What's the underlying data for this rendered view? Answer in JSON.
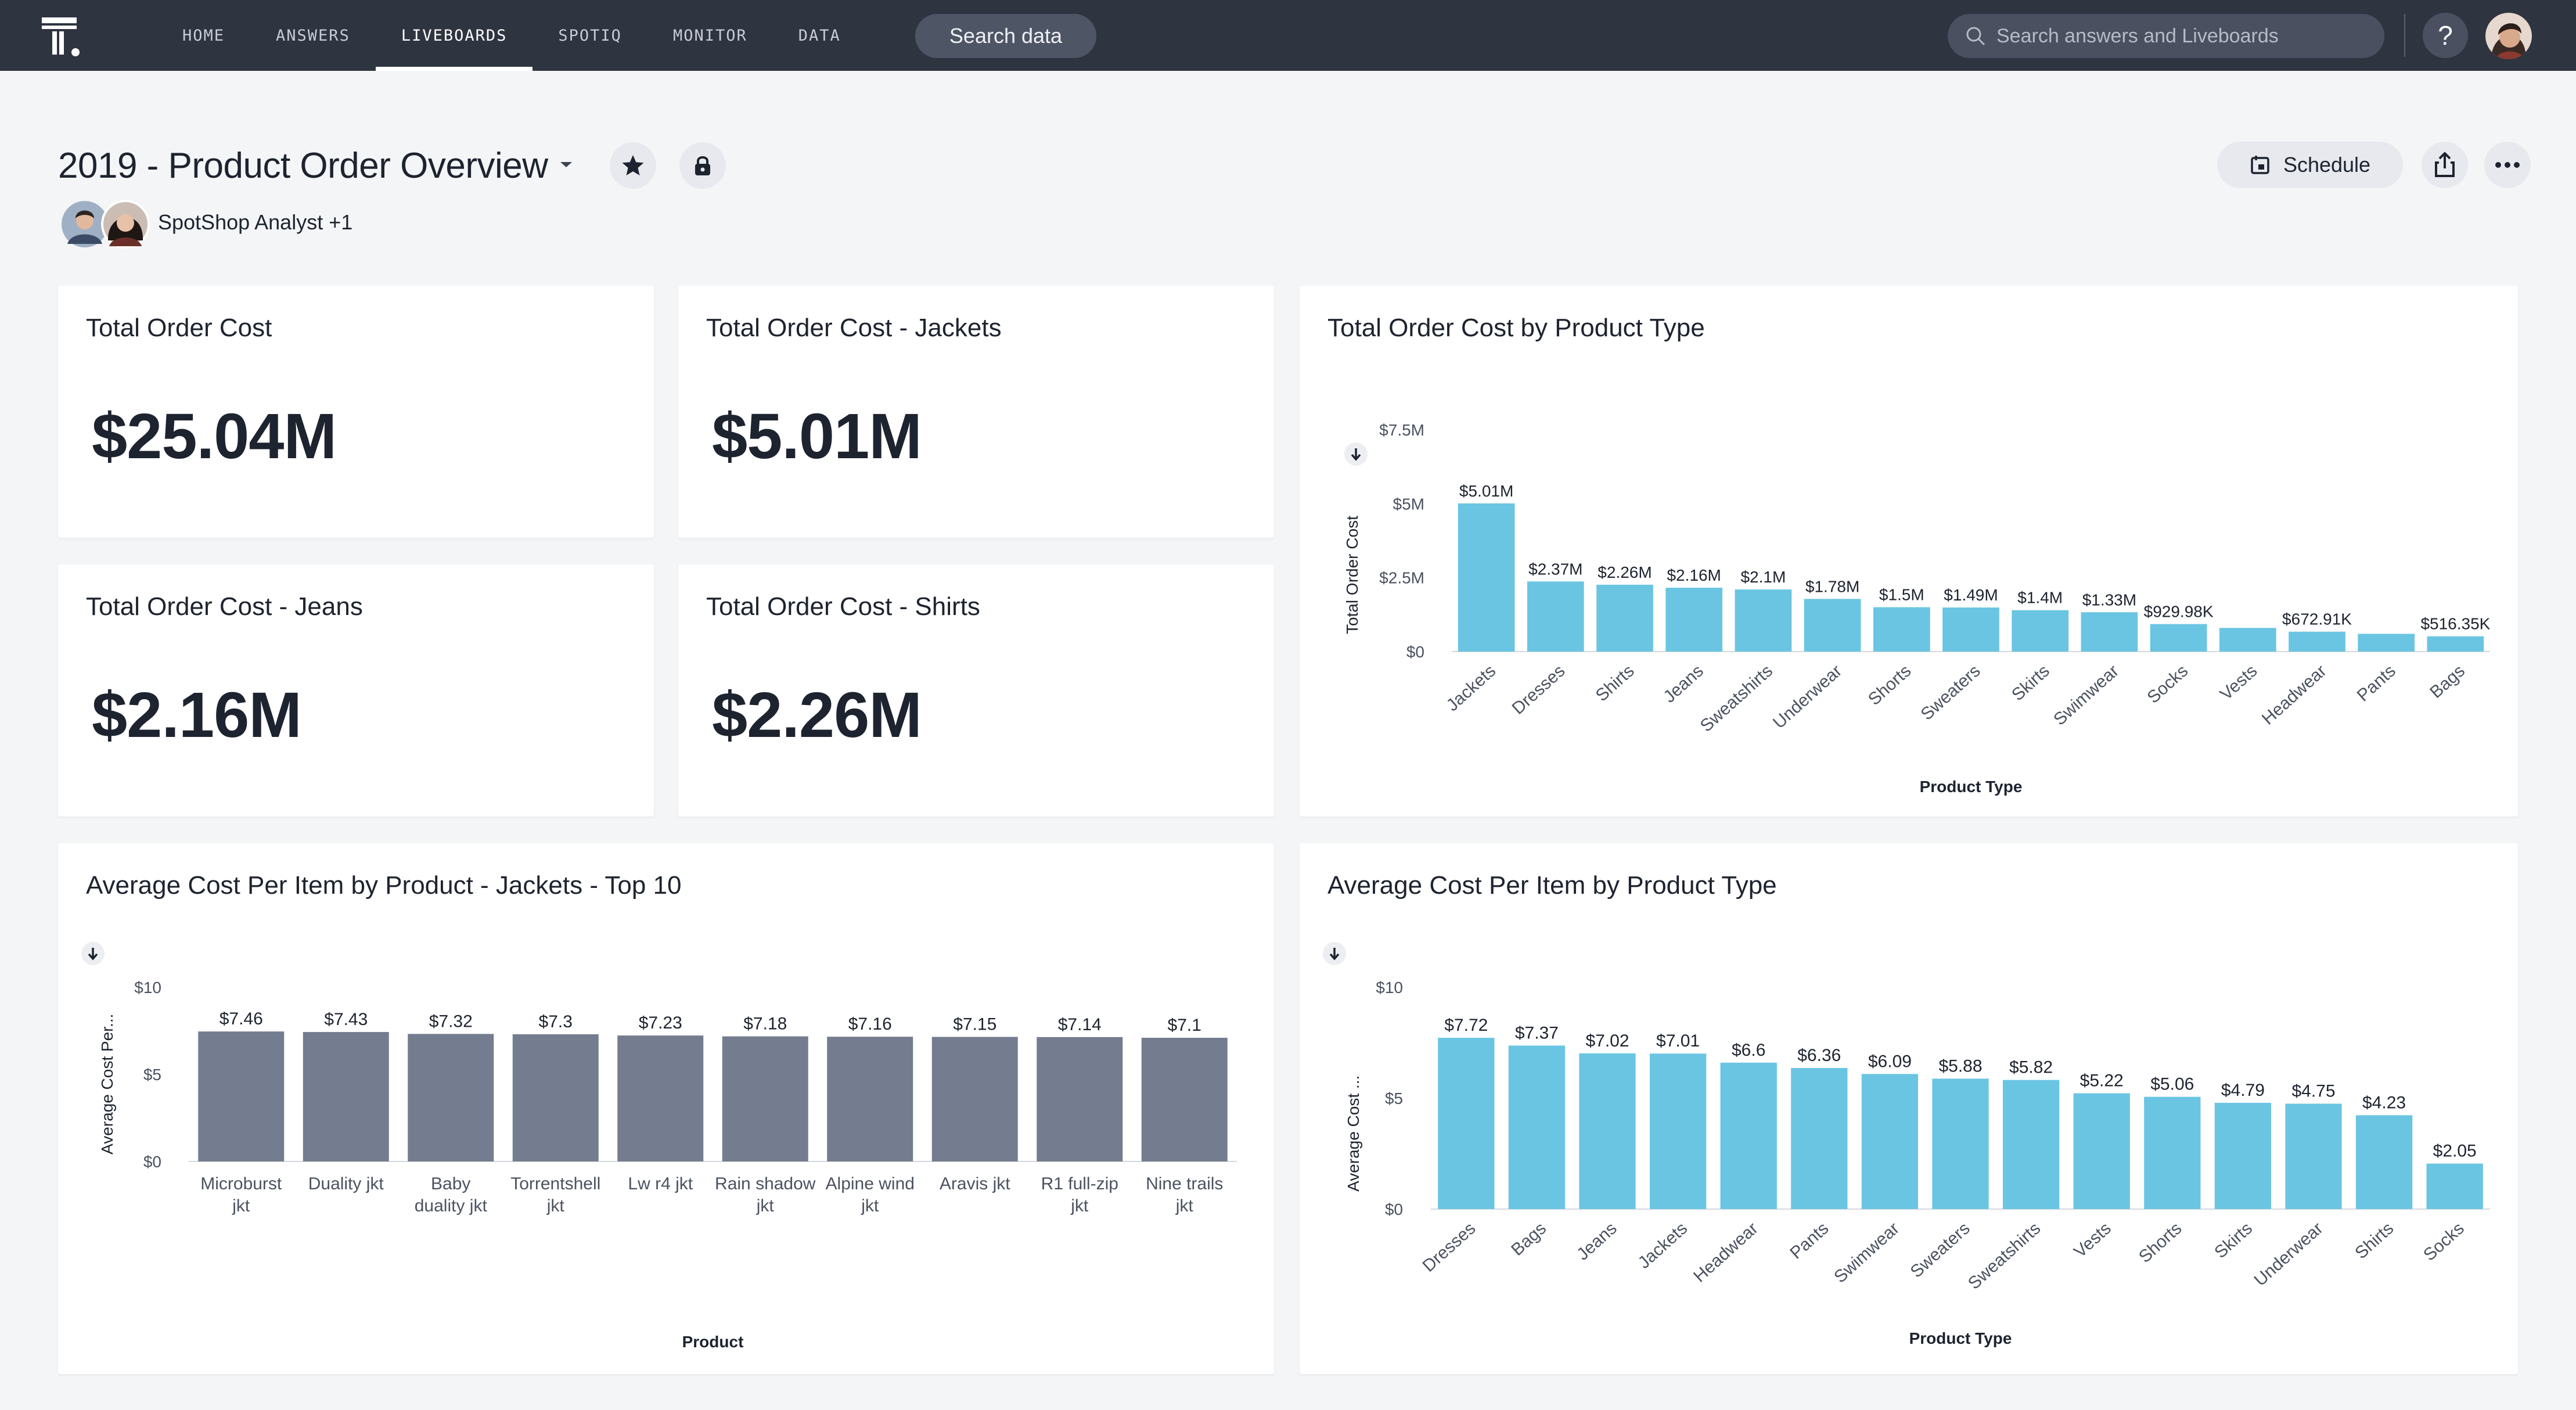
{
  "nav": {
    "items": [
      "HOME",
      "ANSWERS",
      "LIVEBOARDS",
      "SPOTIQ",
      "MONITOR",
      "DATA"
    ],
    "active": "LIVEBOARDS",
    "search_data_label": "Search data",
    "search_placeholder": "Search answers and Liveboards",
    "help_label": "?"
  },
  "liveboard": {
    "title": "2019 - Product Order Overview",
    "author": "SpotShop Analyst +1",
    "schedule_label": "Schedule"
  },
  "kpis": [
    {
      "title": "Total Order Cost",
      "value": "$25.04M"
    },
    {
      "title": "Total Order Cost - Jackets",
      "value": "$5.01M"
    },
    {
      "title": "Total Order Cost - Jeans",
      "value": "$2.16M"
    },
    {
      "title": "Total Order Cost - Shirts",
      "value": "$2.26M"
    }
  ],
  "chart_data": [
    {
      "type": "bar",
      "title": "Total Order Cost by Product Type",
      "xlabel": "Product Type",
      "ylabel": "Total Order Cost",
      "ylim": [
        0,
        7500000
      ],
      "yticks": [
        0,
        2500000,
        5000000,
        7500000
      ],
      "yticklabels": [
        "$0",
        "$2.5M",
        "$5M",
        "$7.5M"
      ],
      "categories": [
        "Jackets",
        "Dresses",
        "Shirts",
        "Jeans",
        "Sweatshirts",
        "Underwear",
        "Shorts",
        "Sweaters",
        "Skirts",
        "Swimwear",
        "Socks",
        "Vests",
        "Headwear",
        "Pants",
        "Bags"
      ],
      "values": [
        5010000,
        2370000,
        2260000,
        2160000,
        2100000,
        1780000,
        1500000,
        1490000,
        1400000,
        1330000,
        929980,
        800000,
        672910,
        600000,
        516350
      ],
      "value_labels": [
        "$5.01M",
        "$2.37M",
        "$2.26M",
        "$2.16M",
        "$2.1M",
        "$1.78M",
        "$1.5M",
        "$1.49M",
        "$1.4M",
        "$1.33M",
        "$929.98K",
        "",
        "$672.91K",
        "",
        "$516.35K"
      ],
      "color": "#6ac5e3",
      "grid": false
    },
    {
      "type": "bar",
      "title": "Average Cost Per Item by Product - Jackets - Top 10",
      "xlabel": "Product",
      "ylabel": "Average Cost Per...",
      "ylim": [
        0,
        10
      ],
      "yticks": [
        0,
        5,
        10
      ],
      "yticklabels": [
        "$0",
        "$5",
        "$10"
      ],
      "categories": [
        "Microburst jkt",
        "Duality jkt",
        "Baby duality jkt",
        "Torrentshell jkt",
        "Lw r4 jkt",
        "Rain shadow jkt",
        "Alpine wind jkt",
        "Aravis jkt",
        "R1 full-zip jkt",
        "Nine trails jkt"
      ],
      "values": [
        7.46,
        7.43,
        7.32,
        7.3,
        7.23,
        7.18,
        7.16,
        7.15,
        7.14,
        7.1
      ],
      "value_labels": [
        "$7.46",
        "$7.43",
        "$7.32",
        "$7.3",
        "$7.23",
        "$7.18",
        "$7.16",
        "$7.15",
        "$7.14",
        "$7.1"
      ],
      "color": "#747d8f",
      "grid": false
    },
    {
      "type": "bar",
      "title": "Average Cost Per Item by Product Type",
      "xlabel": "Product Type",
      "ylabel": "Average Cost ...",
      "ylim": [
        0,
        10
      ],
      "yticks": [
        0,
        5,
        10
      ],
      "yticklabels": [
        "$0",
        "$5",
        "$10"
      ],
      "categories": [
        "Dresses",
        "Bags",
        "Jeans",
        "Jackets",
        "Headwear",
        "Pants",
        "Swimwear",
        "Sweaters",
        "Sweatshirts",
        "Vests",
        "Shorts",
        "Skirts",
        "Underwear",
        "Shirts",
        "Socks"
      ],
      "values": [
        7.72,
        7.37,
        7.02,
        7.01,
        6.6,
        6.36,
        6.09,
        5.88,
        5.82,
        5.22,
        5.06,
        4.79,
        4.75,
        4.23,
        2.05
      ],
      "value_labels": [
        "$7.72",
        "$7.37",
        "$7.02",
        "$7.01",
        "$6.6",
        "$6.36",
        "$6.09",
        "$5.88",
        "$5.82",
        "$5.22",
        "$5.06",
        "$4.79",
        "$4.75",
        "$4.23",
        "$2.05"
      ],
      "color": "#6ac5e3",
      "grid": false
    }
  ]
}
